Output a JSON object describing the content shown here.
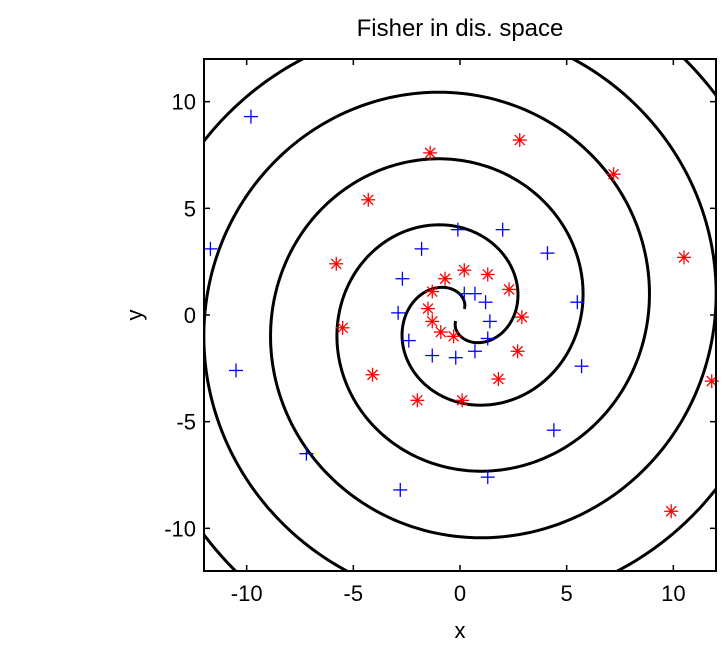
{
  "chart_data": {
    "type": "scatter",
    "title": "Fisher in dis. space",
    "xlabel": "x",
    "ylabel": "y",
    "xlim": [
      -12,
      12
    ],
    "ylim": [
      -12,
      12
    ],
    "xticks": [
      -10,
      -5,
      0,
      5,
      10
    ],
    "yticks": [
      -10,
      -5,
      0,
      5,
      10
    ],
    "xtick_labels": [
      "-10",
      "-5",
      "0",
      "5",
      "10"
    ],
    "ytick_labels": [
      "-10",
      "-5",
      "0",
      "5",
      "10"
    ],
    "grid": false,
    "legend": "none",
    "series": [
      {
        "marker": "plus",
        "color": "#0000ff",
        "points": [
          [
            -9.8,
            9.3
          ],
          [
            -11.7,
            3.1
          ],
          [
            -10.5,
            -2.6
          ],
          [
            -7.2,
            -6.5
          ],
          [
            -2.8,
            -8.2
          ],
          [
            1.3,
            -7.6
          ],
          [
            4.4,
            -5.4
          ],
          [
            5.7,
            -2.4
          ],
          [
            5.5,
            0.6
          ],
          [
            4.1,
            2.9
          ],
          [
            2.0,
            4.0
          ],
          [
            -0.1,
            4.0
          ],
          [
            -1.8,
            3.1
          ],
          [
            -2.7,
            1.7
          ],
          [
            -2.9,
            0.1
          ],
          [
            -2.4,
            -1.2
          ],
          [
            -1.3,
            -1.9
          ],
          [
            -0.2,
            -2.0
          ],
          [
            0.7,
            -1.7
          ],
          [
            1.3,
            -1.1
          ],
          [
            1.4,
            -0.3
          ],
          [
            1.2,
            0.6
          ],
          [
            0.7,
            1.0
          ],
          [
            0.2,
            1.0
          ]
        ]
      },
      {
        "marker": "asterisk",
        "color": "#ff0000",
        "points": [
          [
            -1.4,
            7.6
          ],
          [
            2.8,
            8.2
          ],
          [
            7.2,
            6.6
          ],
          [
            10.5,
            2.7
          ],
          [
            11.8,
            -3.1
          ],
          [
            9.9,
            -9.2
          ],
          [
            -4.3,
            5.4
          ],
          [
            -5.8,
            2.4
          ],
          [
            -5.5,
            -0.6
          ],
          [
            -4.1,
            -2.8
          ],
          [
            -2.0,
            -4.0
          ],
          [
            0.1,
            -4.0
          ],
          [
            1.8,
            -3.0
          ],
          [
            2.7,
            -1.7
          ],
          [
            2.9,
            -0.1
          ],
          [
            2.3,
            1.2
          ],
          [
            1.3,
            1.9
          ],
          [
            0.2,
            2.1
          ],
          [
            -0.7,
            1.7
          ],
          [
            -1.3,
            1.1
          ],
          [
            -1.5,
            0.3
          ],
          [
            -1.3,
            -0.3
          ],
          [
            -0.9,
            -0.8
          ],
          [
            -0.3,
            -1.0
          ]
        ]
      }
    ]
  }
}
